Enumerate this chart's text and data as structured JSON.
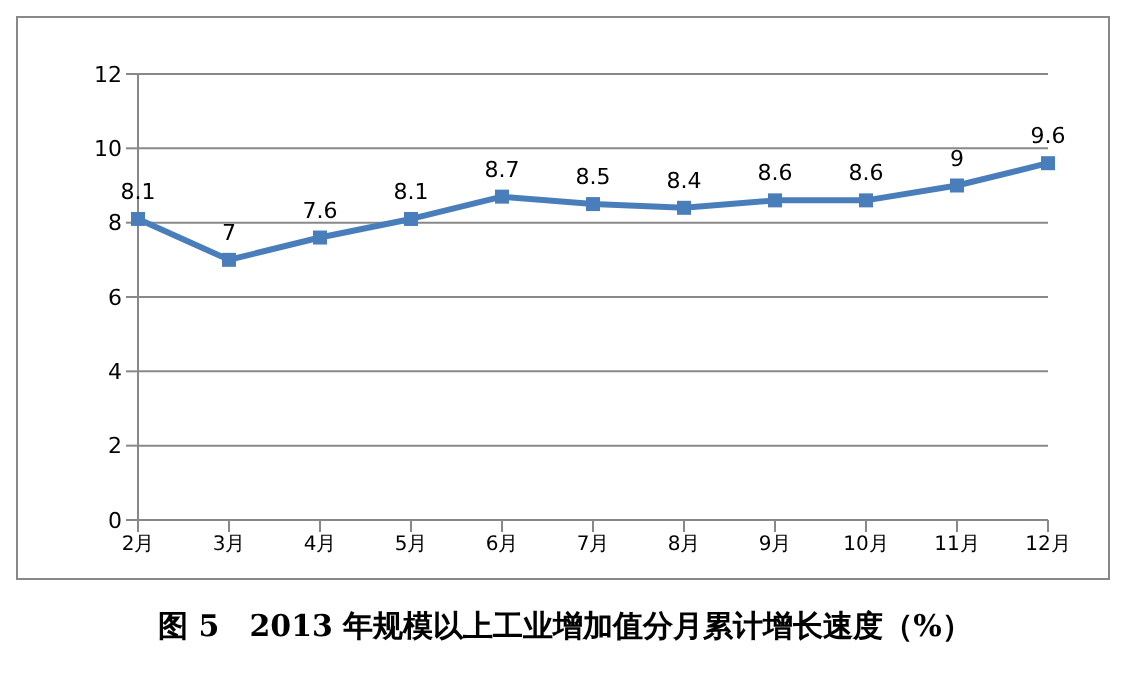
{
  "chart_data": {
    "type": "line",
    "title": "图 5　2013 年规模以上工业增加值分月累计增长速度（%）",
    "categories": [
      "2月",
      "3月",
      "4月",
      "5月",
      "6月",
      "7月",
      "8月",
      "9月",
      "10月",
      "11月",
      "12月"
    ],
    "series": [
      {
        "color": "#4a7ebb",
        "values": [
          8.1,
          7,
          7.6,
          8.1,
          8.7,
          8.5,
          8.4,
          8.6,
          8.6,
          9,
          9.6
        ]
      }
    ],
    "ylim": [
      0,
      12
    ],
    "yticks": [
      0,
      2,
      4,
      6,
      8,
      10,
      12
    ],
    "grid": "y",
    "marker": "square",
    "data_labels": true
  }
}
